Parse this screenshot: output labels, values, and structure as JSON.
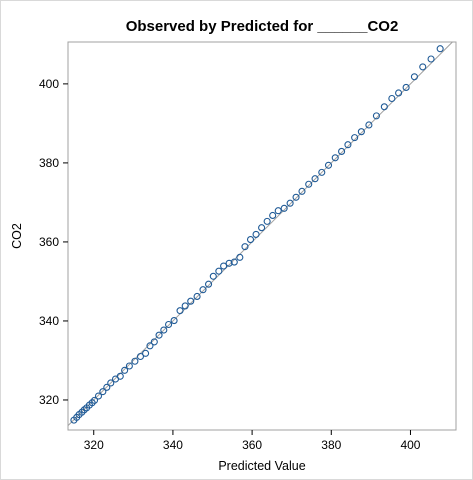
{
  "colors": {
    "marker": "#1f5a96",
    "reference_line": "#a0a0a0",
    "frame": "#a0a0a0"
  },
  "chart_data": {
    "type": "scatter",
    "title": "Observed by Predicted for ______CO2",
    "xlabel": "Predicted Value",
    "ylabel": "CO2",
    "xlim": [
      313.5,
      411.5
    ],
    "ylim": [
      312.4,
      410.6
    ],
    "x_ticks": [
      320,
      340,
      360,
      380,
      400
    ],
    "y_ticks": [
      320,
      340,
      360,
      380,
      400
    ],
    "grid": false,
    "reference_line": "y = x",
    "series": [
      {
        "points": [
          [
            315.0,
            314.9
          ],
          [
            315.7,
            315.6
          ],
          [
            316.3,
            316.3
          ],
          [
            317.0,
            316.9
          ],
          [
            317.6,
            317.5
          ],
          [
            318.2,
            318.0
          ],
          [
            318.9,
            318.7
          ],
          [
            319.6,
            319.3
          ],
          [
            320.2,
            319.9
          ],
          [
            321.2,
            321.0
          ],
          [
            322.3,
            322.1
          ],
          [
            323.3,
            323.2
          ],
          [
            324.3,
            324.3
          ],
          [
            325.5,
            325.3
          ],
          [
            326.7,
            326.0
          ],
          [
            327.8,
            327.5
          ],
          [
            329.0,
            328.6
          ],
          [
            330.4,
            329.8
          ],
          [
            331.8,
            331.0
          ],
          [
            333.1,
            331.8
          ],
          [
            334.2,
            333.7
          ],
          [
            335.3,
            334.7
          ],
          [
            336.5,
            336.4
          ],
          [
            337.7,
            337.7
          ],
          [
            338.9,
            339.1
          ],
          [
            340.3,
            340.1
          ],
          [
            341.8,
            342.6
          ],
          [
            343.1,
            343.8
          ],
          [
            344.5,
            345.0
          ],
          [
            346.1,
            346.2
          ],
          [
            347.6,
            347.9
          ],
          [
            349.0,
            349.3
          ],
          [
            350.2,
            351.3
          ],
          [
            351.6,
            352.6
          ],
          [
            352.8,
            353.9
          ],
          [
            354.2,
            354.6
          ],
          [
            355.5,
            354.9
          ],
          [
            356.9,
            356.1
          ],
          [
            358.2,
            358.8
          ],
          [
            359.6,
            360.6
          ],
          [
            361.0,
            361.9
          ],
          [
            362.4,
            363.6
          ],
          [
            363.8,
            365.2
          ],
          [
            365.2,
            366.7
          ],
          [
            366.6,
            367.9
          ],
          [
            368.1,
            368.5
          ],
          [
            369.6,
            369.8
          ],
          [
            371.1,
            371.3
          ],
          [
            372.6,
            372.8
          ],
          [
            374.3,
            374.6
          ],
          [
            375.9,
            376.0
          ],
          [
            377.6,
            377.6
          ],
          [
            379.3,
            379.4
          ],
          [
            381.0,
            381.3
          ],
          [
            382.6,
            382.9
          ],
          [
            384.2,
            384.6
          ],
          [
            385.9,
            386.4
          ],
          [
            387.6,
            387.9
          ],
          [
            389.5,
            389.6
          ],
          [
            391.4,
            391.9
          ],
          [
            393.4,
            394.2
          ],
          [
            395.3,
            396.3
          ],
          [
            397.0,
            397.7
          ],
          [
            398.9,
            399.1
          ],
          [
            401.0,
            401.8
          ],
          [
            403.1,
            404.3
          ],
          [
            405.2,
            406.3
          ],
          [
            407.5,
            408.9
          ]
        ]
      }
    ]
  }
}
